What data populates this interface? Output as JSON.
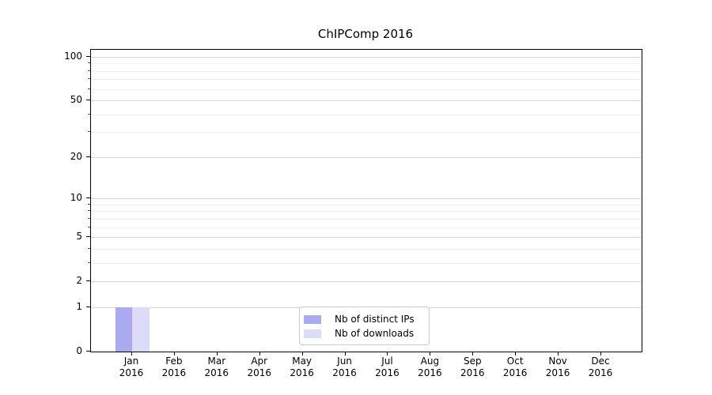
{
  "title": "ChIPComp 2016",
  "chart_data": {
    "type": "bar",
    "title": "ChIPComp 2016",
    "x_year": "2016",
    "categories": [
      "Jan 2016",
      "Feb 2016",
      "Mar 2016",
      "Apr 2016",
      "May 2016",
      "Jun 2016",
      "Jul 2016",
      "Aug 2016",
      "Sep 2016",
      "Oct 2016",
      "Nov 2016",
      "Dec 2016"
    ],
    "month_labels": [
      "Jan",
      "Feb",
      "Mar",
      "Apr",
      "May",
      "Jun",
      "Jul",
      "Aug",
      "Sep",
      "Oct",
      "Nov",
      "Dec"
    ],
    "series": [
      {
        "name": "Nb of distinct IPs",
        "color": "#aaaaf0",
        "values": [
          1,
          0,
          0,
          0,
          0,
          0,
          0,
          0,
          0,
          0,
          0,
          0
        ]
      },
      {
        "name": "Nb of downloads",
        "color": "#dcdcf9",
        "values": [
          1,
          0,
          0,
          0,
          0,
          0,
          0,
          0,
          0,
          0,
          0,
          0
        ]
      }
    ],
    "y_scale": "log10(1+x)",
    "y_ticks": [
      0,
      1,
      2,
      5,
      10,
      20,
      50,
      100
    ],
    "y_tick_labels": [
      "0",
      "1",
      "2",
      "5",
      "10",
      "20",
      "50",
      "100"
    ],
    "y_minor_ticks": [
      3,
      4,
      6,
      7,
      8,
      9,
      30,
      40,
      60,
      70,
      80,
      90
    ],
    "ylim": [
      0,
      112
    ],
    "grid": "horizontal",
    "legend_position": "inside lower center"
  },
  "legend": {
    "items": [
      {
        "label": "Nb of distinct IPs",
        "color": "#aaaaf0"
      },
      {
        "label": "Nb of downloads",
        "color": "#dcdcf9"
      }
    ]
  },
  "colors": {
    "grid_major": "#d6d6d6",
    "grid_minor": "#f0f0f0",
    "spine": "#000000",
    "background": "#ffffff"
  }
}
